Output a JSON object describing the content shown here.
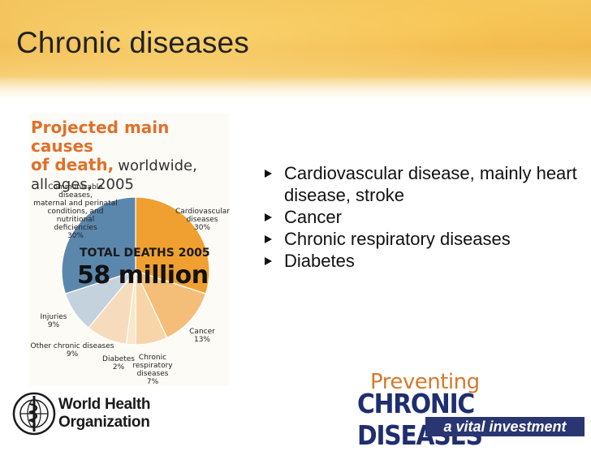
{
  "slide": {
    "title": "Chronic diseases"
  },
  "bullets": [
    "Cardiovascular disease, mainly heart disease, stroke",
    "Cancer",
    "Chronic respiratory diseases",
    "Diabetes"
  ],
  "chart_data": {
    "type": "pie",
    "title": "Projected main causes of death, worldwide, all ages, 2005",
    "title_parts": {
      "line1": "Projected main causes",
      "line2_bold": "of death,",
      "line2_normal": "worldwide,",
      "line3": "all ages, 2005"
    },
    "total_label": "TOTAL DEATHS 2005",
    "total_value": "58 million",
    "slices": [
      {
        "name": "Cardiovascular diseases",
        "label_lines": [
          "Cardiovascular",
          "diseases",
          "30%"
        ],
        "value": 30,
        "color": "#f0a030"
      },
      {
        "name": "Cancer",
        "label_lines": [
          "Cancer",
          "13%"
        ],
        "value": 13,
        "color": "#f5be78"
      },
      {
        "name": "Chronic respiratory diseases",
        "label_lines": [
          "Chronic",
          "respiratory",
          "diseases",
          "7%"
        ],
        "value": 7,
        "color": "#f7d5a8"
      },
      {
        "name": "Diabetes",
        "label_lines": [
          "Diabetes",
          "2%"
        ],
        "value": 2,
        "color": "#fae6c8"
      },
      {
        "name": "Other chronic diseases",
        "label_lines": [
          "Other chronic diseases",
          "9%"
        ],
        "value": 9,
        "color": "#f6dcbd"
      },
      {
        "name": "Injuries",
        "label_lines": [
          "Injuries",
          "9%"
        ],
        "value": 9,
        "color": "#c4d2de"
      },
      {
        "name": "Communicable diseases, maternal and perinatal conditions, and nutritional deficiencies",
        "label_lines": [
          "Communicable diseases,",
          "maternal and perinatal",
          "conditions, and nutritional",
          "deficiencies",
          "30%"
        ],
        "value": 30,
        "color": "#5b87ad"
      }
    ]
  },
  "footer": {
    "org_name_line1": "World Health",
    "org_name_line2": "Organization",
    "campaign_top": "Preventing",
    "campaign_main": "CHRONIC DISEASES",
    "campaign_tagline": "a vital investment"
  },
  "colors": {
    "header_band": "#f0b54a",
    "chart_title_accent": "#e0702a",
    "campaign_blue": "#2a3672",
    "campaign_orange": "#d47a2c"
  },
  "icons": {
    "bullet": "square-bullet-icon",
    "who_emblem": "who-emblem-icon"
  }
}
